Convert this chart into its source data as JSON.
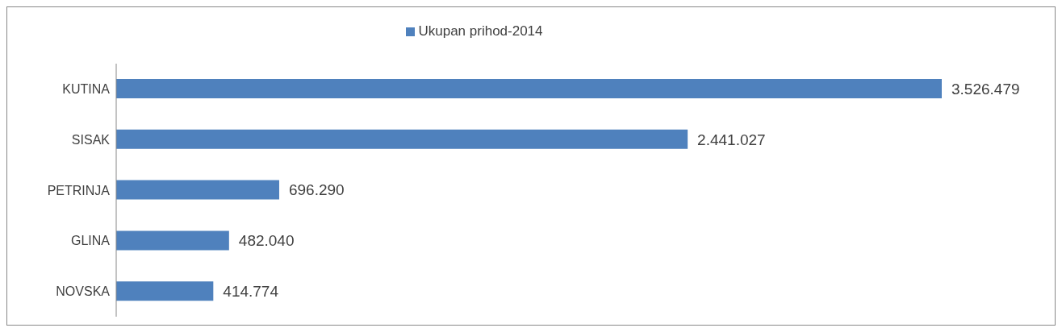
{
  "chart_data": {
    "type": "bar",
    "orientation": "horizontal",
    "categories": [
      "KUTINA",
      "SISAK",
      "PETRINJA",
      "GLINA",
      "NOVSKA"
    ],
    "series": [
      {
        "name": "Ukupan prihod-2014",
        "color": "#4f81bd",
        "values": [
          3526479,
          2441027,
          696290,
          482040,
          414774
        ],
        "value_labels": [
          "3.526.479",
          "2.441.027",
          "696.290",
          "482.040",
          "414.774"
        ]
      }
    ],
    "legend": "top",
    "grid": false
  }
}
